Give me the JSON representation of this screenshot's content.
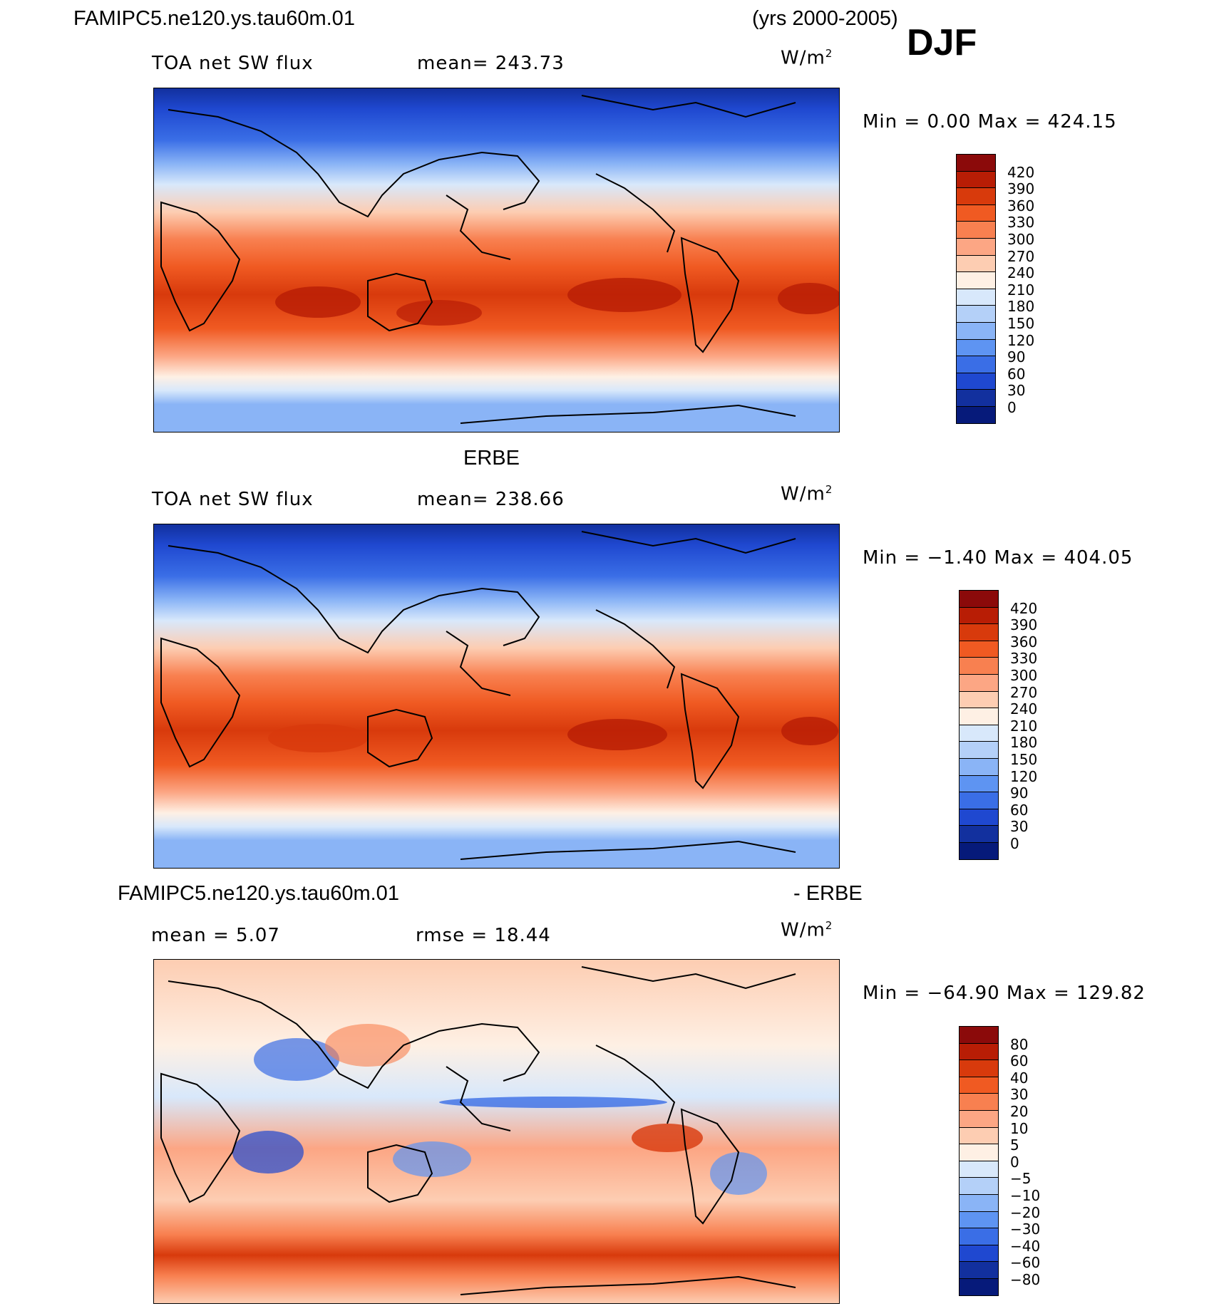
{
  "header": {
    "case": "FAMIPC5.ne120.ys.tau60m.01",
    "years": "(yrs 2000-2005)",
    "season": "DJF"
  },
  "panels": [
    {
      "name": "model",
      "title": "",
      "variable": "TOA net SW flux",
      "mean_label": "mean= 243.73",
      "units_base": "W/m",
      "units_sup": "2",
      "minmax": "Min =    0.00 Max = 424.15",
      "colorbar_labels": [
        "420",
        "390",
        "360",
        "330",
        "300",
        "270",
        "240",
        "210",
        "180",
        "150",
        "120",
        "90",
        "60",
        "30",
        "0"
      ],
      "colorbar_colors": [
        "#8b0a0a",
        "#b81d05",
        "#d83a0c",
        "#f05a22",
        "#f88050",
        "#fca684",
        "#fdcdb2",
        "#fef0e4",
        "#d8e8fb",
        "#b4d0f8",
        "#8ab4f6",
        "#5e94f2",
        "#3a6ee6",
        "#1f48d0",
        "#12309e",
        "#061a7a"
      ]
    },
    {
      "name": "obs",
      "title": "ERBE",
      "variable": "TOA net SW flux",
      "mean_label": "mean= 238.66",
      "units_base": "W/m",
      "units_sup": "2",
      "minmax": "Min =  −1.40 Max = 404.05",
      "colorbar_labels": [
        "420",
        "390",
        "360",
        "330",
        "300",
        "270",
        "240",
        "210",
        "180",
        "150",
        "120",
        "90",
        "60",
        "30",
        "0"
      ],
      "colorbar_colors": [
        "#8b0a0a",
        "#b81d05",
        "#d83a0c",
        "#f05a22",
        "#f88050",
        "#fca684",
        "#fdcdb2",
        "#fef0e4",
        "#d8e8fb",
        "#b4d0f8",
        "#8ab4f6",
        "#5e94f2",
        "#3a6ee6",
        "#1f48d0",
        "#12309e",
        "#061a7a"
      ]
    },
    {
      "name": "diff",
      "title_left": "FAMIPC5.ne120.ys.tau60m.01",
      "title_right": "- ERBE",
      "mean_label": "mean =    5.07",
      "rmse_label": "rmse =   18.44",
      "units_base": "W/m",
      "units_sup": "2",
      "minmax": "Min = −64.90 Max = 129.82",
      "colorbar_labels": [
        "80",
        "60",
        "40",
        "30",
        "20",
        "10",
        "5",
        "0",
        "−5",
        "−10",
        "−20",
        "−30",
        "−40",
        "−60",
        "−80"
      ],
      "colorbar_colors": [
        "#8b0a0a",
        "#b81d05",
        "#d83a0c",
        "#f05a22",
        "#f88050",
        "#fca684",
        "#fdcdb2",
        "#fef0e4",
        "#d8e8fb",
        "#b4d0f8",
        "#8ab4f6",
        "#5e94f2",
        "#3a6ee6",
        "#1f48d0",
        "#12309e",
        "#061a7a"
      ]
    }
  ]
}
